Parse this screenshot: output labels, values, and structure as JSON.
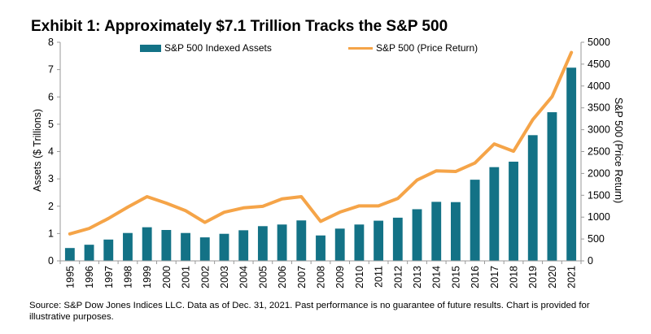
{
  "title": "Exhibit 1: Approximately $7.1 Trillion Tracks the S&P 500",
  "source_note": "Source: S&P Dow Jones Indices LLC.  Data as of Dec. 31, 2021.  Past performance is no guarantee of future results.  Chart is provided for illustrative purposes.",
  "colors": {
    "bar": "#137286",
    "line": "#F5A448",
    "axis": "#999999"
  },
  "chart_data": {
    "type": "bar",
    "categories": [
      "1995",
      "1996",
      "1997",
      "1998",
      "1999",
      "2000",
      "2001",
      "2002",
      "2003",
      "2004",
      "2005",
      "2006",
      "2007",
      "2008",
      "2009",
      "2010",
      "2011",
      "2012",
      "2013",
      "2014",
      "2015",
      "2016",
      "2017",
      "2018",
      "2019",
      "2020",
      "2021"
    ],
    "series": [
      {
        "name": "S&P 500 Indexed Assets",
        "type": "bar",
        "axis": "left",
        "values": [
          0.47,
          0.59,
          0.78,
          1.02,
          1.23,
          1.13,
          1.02,
          0.86,
          0.99,
          1.12,
          1.27,
          1.33,
          1.48,
          0.93,
          1.18,
          1.33,
          1.47,
          1.58,
          1.89,
          2.16,
          2.15,
          2.97,
          3.43,
          3.63,
          4.6,
          5.44,
          7.07
        ]
      },
      {
        "name": "S&P 500 (Price Return)",
        "type": "line",
        "axis": "right",
        "values": [
          616,
          741,
          970,
          1229,
          1469,
          1320,
          1148,
          880,
          1112,
          1212,
          1248,
          1418,
          1468,
          903,
          1115,
          1258,
          1258,
          1426,
          1848,
          2059,
          2044,
          2239,
          2674,
          2507,
          3231,
          3756,
          4766
        ]
      }
    ],
    "ylabel": "Assets  ($ Trillions)",
    "y2label": "S&P 500 (Price Return)",
    "ylim": [
      0,
      8
    ],
    "y2lim": [
      0,
      5000
    ],
    "yticks": [
      "0",
      "1",
      "2",
      "3",
      "4",
      "5",
      "6",
      "7",
      "8"
    ],
    "y2ticks": [
      "0",
      "500",
      "1000",
      "1500",
      "2000",
      "2500",
      "3000",
      "3500",
      "4000",
      "4500",
      "5000"
    ],
    "grid": false,
    "legend_position": "top"
  }
}
